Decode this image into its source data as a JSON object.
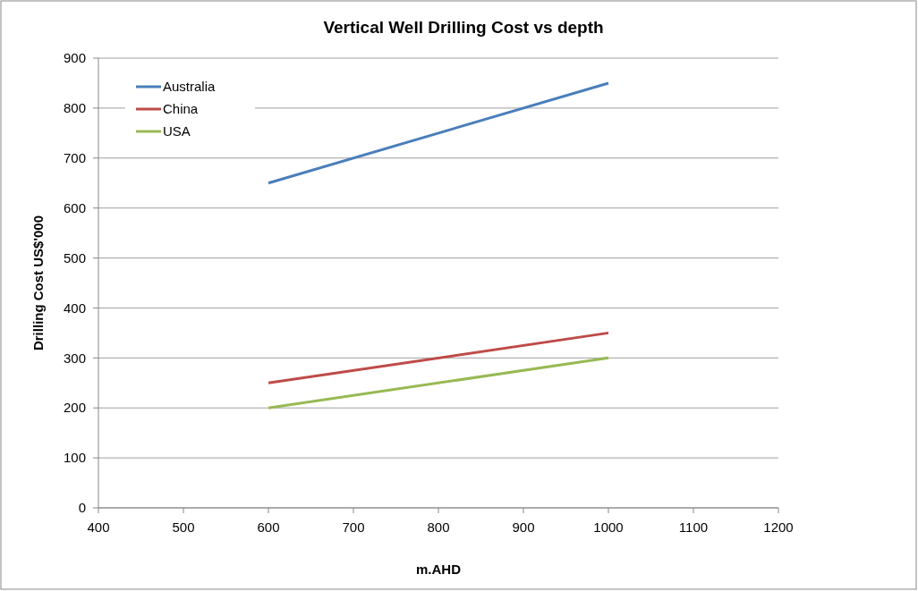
{
  "chart_data": {
    "type": "line",
    "title": "Vertical Well Drilling Cost vs depth",
    "xlabel": "m.AHD",
    "ylabel": "Drilling Cost US$'000",
    "x": [
      600,
      1000
    ],
    "series": [
      {
        "name": "Australia",
        "color": "#4a7ebb",
        "values": [
          650,
          850
        ]
      },
      {
        "name": "China",
        "color": "#be4b48",
        "values": [
          250,
          350
        ]
      },
      {
        "name": "USA",
        "color": "#98b954",
        "values": [
          200,
          300
        ]
      }
    ],
    "xlim": [
      400,
      1200
    ],
    "xticks": [
      400,
      500,
      600,
      700,
      800,
      900,
      1000,
      1100,
      1200
    ],
    "ylim": [
      0,
      900
    ],
    "yticks": [
      0,
      100,
      200,
      300,
      400,
      500,
      600,
      700,
      800,
      900
    ],
    "grid": "y",
    "legend": "top left",
    "marker": "none",
    "line_style": "solid"
  }
}
